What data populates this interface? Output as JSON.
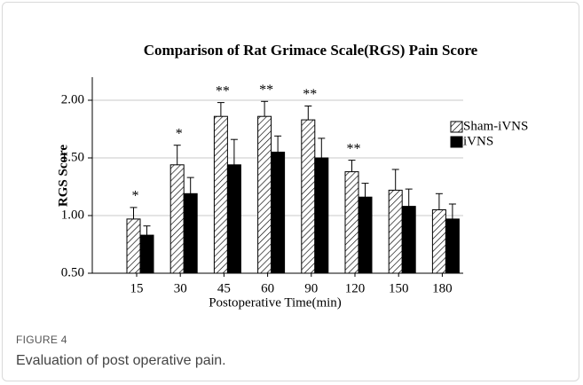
{
  "chart_data": {
    "type": "bar",
    "title": "Comparison of Rat Grimace Scale(RGS) Pain Score",
    "x_label": "Postoperative Time(min)",
    "y_label": "RGS Score",
    "categories": [
      "15",
      "30",
      "45",
      "60",
      "90",
      "120",
      "150",
      "180"
    ],
    "series": [
      {
        "name": "Sham-iVNS",
        "color": "#000000",
        "pattern": "hatch",
        "values": [
          0.97,
          1.44,
          1.86,
          1.86,
          1.83,
          1.38,
          1.22,
          1.05
        ],
        "errors": [
          0.1,
          0.17,
          0.12,
          0.13,
          0.12,
          0.1,
          0.18,
          0.14
        ]
      },
      {
        "name": "iVNS",
        "color": "#000000",
        "pattern": "solid",
        "values": [
          0.83,
          1.19,
          1.44,
          1.55,
          1.5,
          1.16,
          1.08,
          0.97
        ],
        "errors": [
          0.08,
          0.14,
          0.22,
          0.14,
          0.17,
          0.12,
          0.15,
          0.13
        ]
      }
    ],
    "annotations": [
      "*",
      "*",
      "**",
      "**",
      "**",
      "**",
      null,
      null
    ],
    "ylim": [
      0.5,
      2.2
    ],
    "yticks": [
      {
        "value": 0.5,
        "label": "0.50"
      },
      {
        "value": 1.0,
        "label": "1.00"
      },
      {
        "value": 1.5,
        "label": "1.50"
      },
      {
        "value": 2.0,
        "label": "2.00"
      }
    ],
    "grid": true,
    "legend": "right"
  },
  "caption": {
    "label": "FIGURE 4",
    "text": "Evaluation of post operative pain."
  }
}
